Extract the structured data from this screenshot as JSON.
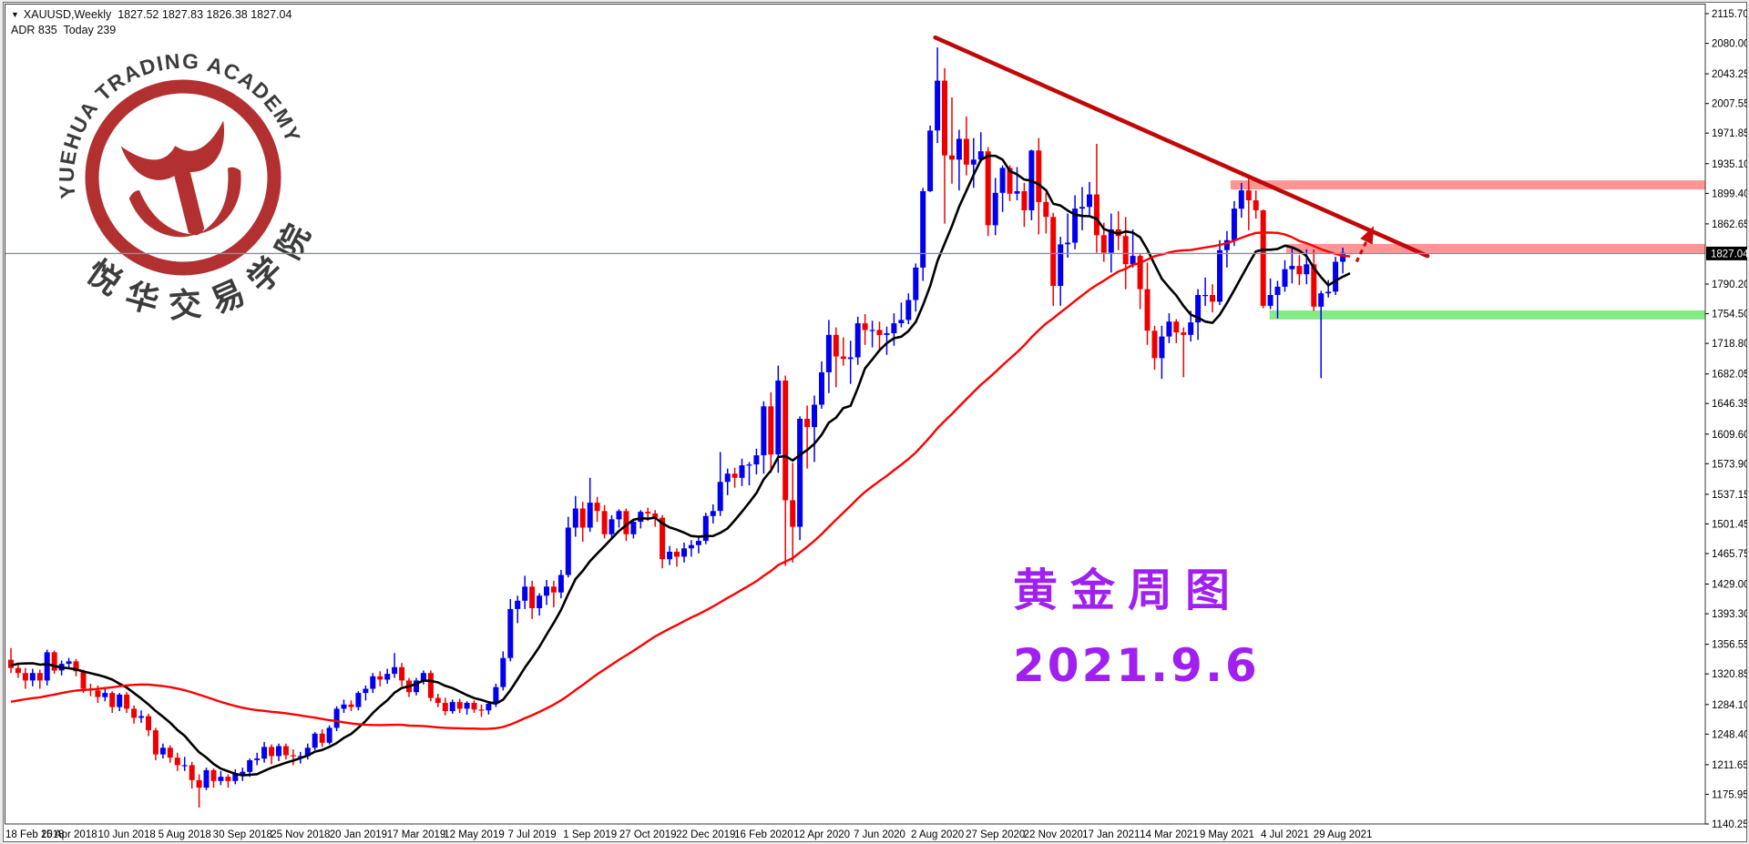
{
  "info": {
    "symbol": "XAUUSD,Weekly",
    "open": "1827.52",
    "high": "1827.83",
    "low": "1826.38",
    "close": "1827.04",
    "adr_label": "ADR",
    "adr_value": "835",
    "today_label": "Today",
    "today_value": "239"
  },
  "caption": {
    "line1": "黄金周图",
    "line2": "2021.9.6",
    "color": "#a020f0"
  },
  "logo": {
    "text_en": "YUEHUA TRADING ACADEMY",
    "text_cn": "悦华交易学院",
    "ring_color": "#b23030",
    "text_color": "#3c3c3c"
  },
  "chart_data": {
    "type": "candlestick",
    "symbol": "XAUUSD",
    "timeframe": "Weekly",
    "title": "XAUUSD Weekly gold chart 2018-02 to 2021-09",
    "current_price": 1827.04,
    "price_tag": "1827.04",
    "bull_color": "#0000ee",
    "bear_color": "#ee0000",
    "grid": false,
    "legend": false,
    "y_ticks": [
      2115.7,
      2080.0,
      2043.25,
      2007.55,
      1971.85,
      1935.1,
      1899.4,
      1862.65,
      1790.2,
      1754.5,
      1718.8,
      1682.05,
      1646.35,
      1609.6,
      1573.9,
      1537.15,
      1501.45,
      1465.75,
      1429.0,
      1393.3,
      1356.55,
      1320.85,
      1284.1,
      1248.4,
      1211.65,
      1175.95,
      1140.25
    ],
    "y_range": [
      1140.25,
      2115.7
    ],
    "x_labels": [
      "18 Feb 2018",
      "15 Apr 2018",
      "10 Jun 2018",
      "5 Aug 2018",
      "30 Sep 2018",
      "25 Nov 2018",
      "20 Jan 2019",
      "17 Mar 2019",
      "12 May 2019",
      "7 Jul 2019",
      "1 Sep 2019",
      "27 Oct 2019",
      "22 Dec 2019",
      "16 Feb 2020",
      "12 Apr 2020",
      "7 Jun 2020",
      "2 Aug 2020",
      "27 Sep 2020",
      "22 Nov 2020",
      "17 Jan 2021",
      "14 Mar 2021",
      "9 May 2021",
      "4 Jul 2021",
      "29 Aug 2021"
    ],
    "label_every": 8,
    "indicators": [
      {
        "name": "ma-fast",
        "period": 10,
        "color": "#000000",
        "width": 2.6
      },
      {
        "name": "ma-slow",
        "period": 50,
        "color": "#ff0000",
        "width": 2.4
      }
    ],
    "ma_warmup_closes": [
      1230,
      1235,
      1245,
      1255,
      1265,
      1258,
      1248,
      1240,
      1252,
      1262,
      1270,
      1268,
      1256,
      1247,
      1238,
      1230,
      1226,
      1235,
      1248,
      1258,
      1268,
      1278,
      1288,
      1298,
      1308,
      1318,
      1330,
      1342,
      1346,
      1336,
      1326,
      1316,
      1306,
      1296,
      1286,
      1280,
      1274,
      1270,
      1276,
      1284,
      1292,
      1300,
      1310,
      1320,
      1330,
      1340,
      1348,
      1352,
      1344,
      1338
    ],
    "zones": [
      {
        "name": "resistance-zone-upper",
        "color": "#ff9494",
        "price_top": 1915.0,
        "price_bottom": 1904.0,
        "start_index": 168.5
      },
      {
        "name": "resistance-zone-lower",
        "color": "#ff9494",
        "price_top": 1838.5,
        "price_bottom": 1827.6,
        "start_index": 176.2
      },
      {
        "name": "support-zone",
        "color": "#86eb86",
        "price_top": 1758.5,
        "price_bottom": 1747.5,
        "start_index": 173.9
      }
    ],
    "trendline": {
      "color": "#c00808",
      "width": 4.6,
      "from": {
        "index": 127.7,
        "price": 2087
      },
      "to": {
        "index": 195.7,
        "price": 1824
      }
    },
    "arrow": {
      "color": "#cc0c0c",
      "width": 3.2,
      "from": {
        "index": 185.9,
        "price": 1817
      },
      "to": {
        "index": 188.3,
        "price": 1860
      }
    },
    "candles": [
      [
        1338,
        1352,
        1322,
        1328
      ],
      [
        1328,
        1334,
        1316,
        1322
      ],
      [
        1322,
        1328,
        1303,
        1313
      ],
      [
        1313,
        1327,
        1306,
        1322
      ],
      [
        1322,
        1326,
        1303,
        1313
      ],
      [
        1313,
        1350,
        1307,
        1347
      ],
      [
        1347,
        1349,
        1321,
        1325
      ],
      [
        1325,
        1337,
        1319,
        1333
      ],
      [
        1333,
        1340,
        1327,
        1336
      ],
      [
        1336,
        1339,
        1318,
        1324
      ],
      [
        1324,
        1326,
        1298,
        1303
      ],
      [
        1303,
        1309,
        1294,
        1301
      ],
      [
        1301,
        1307,
        1286,
        1293
      ],
      [
        1293,
        1304,
        1288,
        1298
      ],
      [
        1298,
        1300,
        1274,
        1281
      ],
      [
        1281,
        1298,
        1276,
        1296
      ],
      [
        1296,
        1299,
        1274,
        1279
      ],
      [
        1279,
        1283,
        1261,
        1268
      ],
      [
        1268,
        1277,
        1262,
        1270
      ],
      [
        1270,
        1273,
        1246,
        1253
      ],
      [
        1253,
        1256,
        1217,
        1224
      ],
      [
        1224,
        1237,
        1219,
        1232
      ],
      [
        1232,
        1235,
        1214,
        1220
      ],
      [
        1220,
        1226,
        1204,
        1211
      ],
      [
        1211,
        1221,
        1204,
        1211
      ],
      [
        1211,
        1215,
        1183,
        1193
      ],
      [
        1193,
        1200,
        1160,
        1184
      ],
      [
        1184,
        1208,
        1181,
        1205
      ],
      [
        1205,
        1207,
        1184,
        1192
      ],
      [
        1192,
        1204,
        1187,
        1197
      ],
      [
        1197,
        1200,
        1184,
        1192
      ],
      [
        1192,
        1206,
        1188,
        1200
      ],
      [
        1200,
        1208,
        1192,
        1203
      ],
      [
        1203,
        1219,
        1197,
        1217
      ],
      [
        1217,
        1226,
        1211,
        1219
      ],
      [
        1219,
        1239,
        1214,
        1233
      ],
      [
        1233,
        1236,
        1212,
        1222
      ],
      [
        1222,
        1237,
        1216,
        1234
      ],
      [
        1234,
        1237,
        1218,
        1223
      ],
      [
        1223,
        1230,
        1211,
        1222
      ],
      [
        1222,
        1227,
        1213,
        1222
      ],
      [
        1222,
        1237,
        1218,
        1232
      ],
      [
        1232,
        1251,
        1229,
        1249
      ],
      [
        1249,
        1254,
        1233,
        1238
      ],
      [
        1238,
        1259,
        1236,
        1256
      ],
      [
        1256,
        1282,
        1252,
        1279
      ],
      [
        1279,
        1290,
        1274,
        1284
      ],
      [
        1284,
        1289,
        1276,
        1281
      ],
      [
        1281,
        1300,
        1277,
        1298
      ],
      [
        1298,
        1307,
        1289,
        1303
      ],
      [
        1303,
        1322,
        1298,
        1318
      ],
      [
        1318,
        1324,
        1306,
        1314
      ],
      [
        1314,
        1327,
        1309,
        1321
      ],
      [
        1321,
        1346,
        1316,
        1329
      ],
      [
        1329,
        1334,
        1306,
        1313
      ],
      [
        1313,
        1316,
        1293,
        1299
      ],
      [
        1299,
        1316,
        1295,
        1313
      ],
      [
        1313,
        1325,
        1308,
        1322
      ],
      [
        1322,
        1325,
        1288,
        1292
      ],
      [
        1292,
        1297,
        1281,
        1286
      ],
      [
        1286,
        1292,
        1271,
        1276
      ],
      [
        1276,
        1290,
        1273,
        1287
      ],
      [
        1287,
        1291,
        1274,
        1279
      ],
      [
        1279,
        1288,
        1272,
        1286
      ],
      [
        1286,
        1289,
        1274,
        1278
      ],
      [
        1278,
        1284,
        1269,
        1277
      ],
      [
        1277,
        1288,
        1272,
        1285
      ],
      [
        1285,
        1309,
        1281,
        1305
      ],
      [
        1305,
        1348,
        1301,
        1340
      ],
      [
        1340,
        1411,
        1336,
        1399
      ],
      [
        1399,
        1415,
        1382,
        1409
      ],
      [
        1409,
        1439,
        1399,
        1426
      ],
      [
        1426,
        1433,
        1387,
        1400
      ],
      [
        1400,
        1418,
        1391,
        1415
      ],
      [
        1415,
        1434,
        1404,
        1426
      ],
      [
        1426,
        1433,
        1401,
        1419
      ],
      [
        1419,
        1446,
        1412,
        1440
      ],
      [
        1440,
        1510,
        1437,
        1497
      ],
      [
        1497,
        1535,
        1486,
        1520
      ],
      [
        1520,
        1528,
        1480,
        1497
      ],
      [
        1497,
        1557,
        1492,
        1527
      ],
      [
        1527,
        1534,
        1504,
        1517
      ],
      [
        1517,
        1524,
        1484,
        1489
      ],
      [
        1489,
        1512,
        1483,
        1507
      ],
      [
        1507,
        1519,
        1497,
        1517
      ],
      [
        1517,
        1520,
        1481,
        1489
      ],
      [
        1489,
        1508,
        1484,
        1504
      ],
      [
        1504,
        1518,
        1496,
        1516
      ],
      [
        1516,
        1521,
        1505,
        1514
      ],
      [
        1514,
        1518,
        1498,
        1509
      ],
      [
        1509,
        1512,
        1448,
        1459
      ],
      [
        1459,
        1475,
        1452,
        1468
      ],
      [
        1468,
        1472,
        1450,
        1462
      ],
      [
        1462,
        1479,
        1455,
        1472
      ],
      [
        1472,
        1482,
        1462,
        1476
      ],
      [
        1476,
        1487,
        1466,
        1481
      ],
      [
        1481,
        1515,
        1477,
        1511
      ],
      [
        1511,
        1525,
        1502,
        1517
      ],
      [
        1517,
        1588,
        1511,
        1552
      ],
      [
        1552,
        1568,
        1536,
        1562
      ],
      [
        1562,
        1569,
        1545,
        1557
      ],
      [
        1557,
        1580,
        1547,
        1572
      ],
      [
        1572,
        1576,
        1548,
        1573
      ],
      [
        1573,
        1592,
        1561,
        1584
      ],
      [
        1584,
        1649,
        1562,
        1643
      ],
      [
        1643,
        1660,
        1563,
        1585
      ],
      [
        1585,
        1692,
        1563,
        1674
      ],
      [
        1674,
        1680,
        1451,
        1530
      ],
      [
        1530,
        1575,
        1455,
        1498
      ],
      [
        1498,
        1631,
        1482,
        1628
      ],
      [
        1628,
        1644,
        1568,
        1618
      ],
      [
        1618,
        1656,
        1576,
        1645
      ],
      [
        1645,
        1697,
        1640,
        1684
      ],
      [
        1684,
        1747,
        1659,
        1729
      ],
      [
        1729,
        1738,
        1666,
        1703
      ],
      [
        1703,
        1726,
        1692,
        1700
      ],
      [
        1700,
        1722,
        1670,
        1702
      ],
      [
        1702,
        1751,
        1693,
        1743
      ],
      [
        1743,
        1754,
        1717,
        1735
      ],
      [
        1735,
        1746,
        1714,
        1735
      ],
      [
        1735,
        1745,
        1708,
        1729
      ],
      [
        1729,
        1739,
        1705,
        1731
      ],
      [
        1731,
        1755,
        1716,
        1743
      ],
      [
        1743,
        1768,
        1738,
        1747
      ],
      [
        1747,
        1779,
        1742,
        1771
      ],
      [
        1771,
        1815,
        1757,
        1810
      ],
      [
        1810,
        1906,
        1794,
        1902
      ],
      [
        1902,
        1981,
        1901,
        1975
      ],
      [
        1975,
        2075,
        1960,
        2035
      ],
      [
        2035,
        2050,
        1863,
        1945
      ],
      [
        1945,
        2015,
        1911,
        1940
      ],
      [
        1940,
        1976,
        1903,
        1965
      ],
      [
        1965,
        1992,
        1921,
        1934
      ],
      [
        1934,
        1966,
        1906,
        1940
      ],
      [
        1940,
        1973,
        1937,
        1950
      ],
      [
        1950,
        1955,
        1848,
        1861
      ],
      [
        1861,
        1918,
        1849,
        1900
      ],
      [
        1900,
        1933,
        1877,
        1930
      ],
      [
        1930,
        1933,
        1890,
        1899
      ],
      [
        1899,
        1931,
        1891,
        1902
      ],
      [
        1902,
        1912,
        1859,
        1879
      ],
      [
        1879,
        1952,
        1867,
        1951
      ],
      [
        1951,
        1966,
        1850,
        1889
      ],
      [
        1889,
        1900,
        1851,
        1871
      ],
      [
        1871,
        1876,
        1764,
        1788
      ],
      [
        1788,
        1847,
        1764,
        1838
      ],
      [
        1838,
        1875,
        1822,
        1840
      ],
      [
        1840,
        1897,
        1832,
        1881
      ],
      [
        1881,
        1907,
        1855,
        1883
      ],
      [
        1883,
        1913,
        1872,
        1898
      ],
      [
        1898,
        1959,
        1828,
        1849
      ],
      [
        1849,
        1864,
        1817,
        1828
      ],
      [
        1828,
        1875,
        1804,
        1856
      ],
      [
        1856,
        1878,
        1831,
        1848
      ],
      [
        1848,
        1871,
        1784,
        1814
      ],
      [
        1814,
        1856,
        1810,
        1824
      ],
      [
        1824,
        1827,
        1760,
        1784
      ],
      [
        1784,
        1816,
        1717,
        1734
      ],
      [
        1734,
        1740,
        1687,
        1701
      ],
      [
        1701,
        1740,
        1676,
        1727
      ],
      [
        1727,
        1755,
        1719,
        1745
      ],
      [
        1745,
        1748,
        1719,
        1732
      ],
      [
        1732,
        1738,
        1678,
        1729
      ],
      [
        1729,
        1758,
        1721,
        1744
      ],
      [
        1744,
        1784,
        1723,
        1777
      ],
      [
        1777,
        1798,
        1764,
        1777
      ],
      [
        1777,
        1790,
        1756,
        1769
      ],
      [
        1769,
        1843,
        1765,
        1831
      ],
      [
        1831,
        1854,
        1810,
        1843
      ],
      [
        1843,
        1890,
        1836,
        1881
      ],
      [
        1881,
        1912,
        1870,
        1903
      ],
      [
        1903,
        1919,
        1855,
        1891
      ],
      [
        1891,
        1903,
        1869,
        1879
      ],
      [
        1879,
        1880,
        1761,
        1764
      ],
      [
        1764,
        1797,
        1760,
        1777
      ],
      [
        1777,
        1794,
        1749,
        1787
      ],
      [
        1787,
        1819,
        1781,
        1808
      ],
      [
        1808,
        1834,
        1791,
        1812
      ],
      [
        1812,
        1825,
        1789,
        1802
      ],
      [
        1802,
        1832,
        1790,
        1814
      ],
      [
        1814,
        1832,
        1758,
        1763
      ],
      [
        1763,
        1782,
        1677,
        1779
      ],
      [
        1779,
        1795,
        1774,
        1781
      ],
      [
        1781,
        1823,
        1777,
        1817
      ],
      [
        1817,
        1834,
        1803,
        1828
      ],
      [
        1827.5,
        1827.8,
        1826.4,
        1827.04
      ]
    ]
  }
}
